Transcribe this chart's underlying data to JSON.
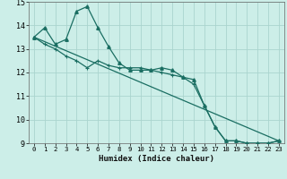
{
  "xlabel": "Humidex (Indice chaleur)",
  "background_color": "#cceee8",
  "grid_color": "#aad4ce",
  "line_color": "#1a6e62",
  "xlim": [
    -0.5,
    23.5
  ],
  "ylim": [
    9,
    15
  ],
  "yticks": [
    9,
    10,
    11,
    12,
    13,
    14,
    15
  ],
  "xticks": [
    0,
    1,
    2,
    3,
    4,
    5,
    6,
    7,
    8,
    9,
    10,
    11,
    12,
    13,
    14,
    15,
    16,
    17,
    18,
    19,
    20,
    21,
    22,
    23
  ],
  "series1_x": [
    0,
    1,
    2,
    3,
    4,
    5,
    6,
    7,
    8,
    9,
    10,
    11,
    12,
    13,
    14,
    15,
    16,
    17,
    18,
    19,
    20,
    21,
    22,
    23
  ],
  "series1_y": [
    13.5,
    13.9,
    13.2,
    13.4,
    14.6,
    14.8,
    13.9,
    13.1,
    12.4,
    12.1,
    12.1,
    12.1,
    12.2,
    12.1,
    11.8,
    11.7,
    10.6,
    9.7,
    9.1,
    9.1,
    9.0,
    9.0,
    9.0,
    9.1
  ],
  "series2_x": [
    0,
    1,
    2,
    3,
    4,
    5,
    6,
    7,
    8,
    9,
    10,
    11,
    12,
    13,
    14,
    15,
    16,
    17,
    18,
    19,
    20,
    21,
    22,
    23
  ],
  "series2_y": [
    13.5,
    13.2,
    13.0,
    12.7,
    12.5,
    12.2,
    12.5,
    12.3,
    12.2,
    12.2,
    12.2,
    12.1,
    12.0,
    11.9,
    11.8,
    11.5,
    10.6,
    9.7,
    9.1,
    9.1,
    9.0,
    9.0,
    9.0,
    9.1
  ],
  "series3_x": [
    0,
    23
  ],
  "series3_y": [
    13.5,
    9.1
  ]
}
